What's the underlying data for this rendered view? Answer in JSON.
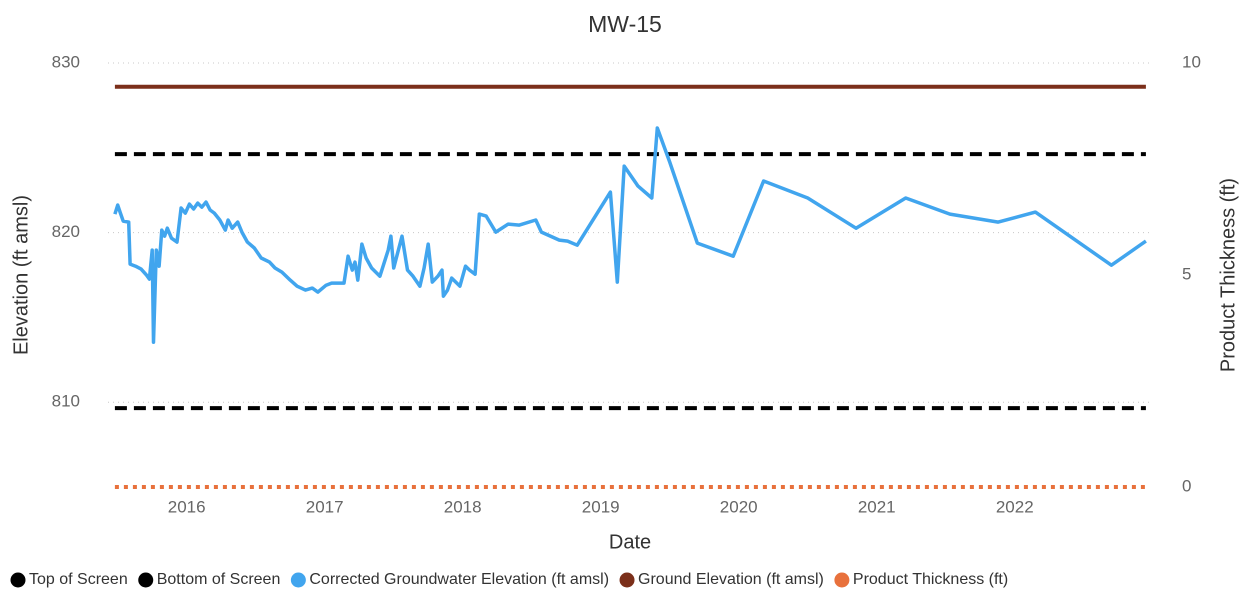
{
  "chart_data": {
    "type": "line",
    "title": "MW-15",
    "x_label": "Date",
    "y_label": "Elevation (ft amsl)",
    "y2_label": "Product Thickness (ft)",
    "xlim": [
      2015.43,
      2022.98
    ],
    "xticks": [
      2016,
      2017,
      2018,
      2019,
      2020,
      2021,
      2022
    ],
    "ylim": [
      805,
      830
    ],
    "yticks": [
      810,
      820,
      830
    ],
    "y2lim": [
      0,
      10
    ],
    "y2ticks": [
      0,
      5,
      10
    ],
    "grid": true,
    "legend": "bottom",
    "series": [
      {
        "name": "Top of Screen",
        "color": "#000000",
        "style": "dashed",
        "x": [
          2015.48,
          2022.95
        ],
        "values": [
          824.63,
          824.63
        ]
      },
      {
        "name": "Bottom of Screen",
        "color": "#000000",
        "style": "dashed",
        "x": [
          2015.48,
          2022.95
        ],
        "values": [
          809.65,
          809.65
        ]
      },
      {
        "name": "Corrected Groundwater Elevation (ft amsl)",
        "color": "#41a5ee",
        "style": "solid",
        "x": [
          2015.48,
          2015.5,
          2015.52,
          2015.54,
          2015.58,
          2015.59,
          2015.63,
          2015.67,
          2015.71,
          2015.73,
          2015.75,
          2015.76,
          2015.78,
          2015.79,
          2015.8,
          2015.82,
          2015.84,
          2015.86,
          2015.89,
          2015.93,
          2015.96,
          2015.99,
          2016.02,
          2016.05,
          2016.08,
          2016.11,
          2016.14,
          2016.17,
          2016.2,
          2016.24,
          2016.28,
          2016.3,
          2016.33,
          2016.37,
          2016.4,
          2016.44,
          2016.49,
          2016.54,
          2016.6,
          2016.64,
          2016.69,
          2016.75,
          2016.8,
          2016.86,
          2016.91,
          2016.95,
          2017.01,
          2017.05,
          2017.14,
          2017.17,
          2017.2,
          2017.22,
          2017.24,
          2017.27,
          2017.3,
          2017.34,
          2017.4,
          2017.46,
          2017.48,
          2017.5,
          2017.56,
          2017.6,
          2017.64,
          2017.69,
          2017.72,
          2017.75,
          2017.78,
          2017.82,
          2017.85,
          2017.86,
          2017.89,
          2017.92,
          2017.95,
          2017.98,
          2018.02,
          2018.05,
          2018.09,
          2018.12,
          2018.17,
          2018.24,
          2018.33,
          2018.41,
          2018.53,
          2018.57,
          2018.7,
          2018.76,
          2018.83,
          2019.07,
          2019.12,
          2019.17,
          2019.27,
          2019.37,
          2019.41,
          2019.5,
          2019.7,
          2019.96,
          2020.18,
          2020.5,
          2020.85,
          2021.21,
          2021.53,
          2021.88,
          2022.15,
          2022.7,
          2022.95
        ],
        "values": [
          821.09,
          821.62,
          821.15,
          820.68,
          820.62,
          818.14,
          818.02,
          817.85,
          817.49,
          817.26,
          818.97,
          813.54,
          818.97,
          818.5,
          818.02,
          820.15,
          819.79,
          820.26,
          819.67,
          819.44,
          821.45,
          821.15,
          821.68,
          821.39,
          821.74,
          821.5,
          821.8,
          821.33,
          821.15,
          820.74,
          820.15,
          820.74,
          820.26,
          820.62,
          820.03,
          819.44,
          819.09,
          818.5,
          818.26,
          817.91,
          817.67,
          817.2,
          816.84,
          816.61,
          816.73,
          816.49,
          816.9,
          817.02,
          817.02,
          818.61,
          817.79,
          818.26,
          817.2,
          819.32,
          818.5,
          817.91,
          817.43,
          818.97,
          819.79,
          817.91,
          819.79,
          817.79,
          817.43,
          816.84,
          817.91,
          819.32,
          817.08,
          817.43,
          817.79,
          816.25,
          816.61,
          817.32,
          817.08,
          816.84,
          818.02,
          817.79,
          817.55,
          821.09,
          820.97,
          820.03,
          820.5,
          820.44,
          820.74,
          820.03,
          819.56,
          819.5,
          819.26,
          822.39,
          817.08,
          823.92,
          822.74,
          822.04,
          826.17,
          824.16,
          819.38,
          818.61,
          823.04,
          822.04,
          820.26,
          822.04,
          821.09,
          820.62,
          821.21,
          818.08,
          819.5
        ]
      },
      {
        "name": "Ground Elevation (ft amsl)",
        "color": "#7b2f1a",
        "style": "solid",
        "x": [
          2015.48,
          2022.95
        ],
        "values": [
          828.6,
          828.6
        ]
      },
      {
        "name": "Product Thickness (ft)",
        "color": "#e8713c",
        "style": "dotted",
        "axis": "y2",
        "x": [
          2015.48,
          2022.95
        ],
        "values": [
          0,
          0
        ]
      }
    ]
  }
}
